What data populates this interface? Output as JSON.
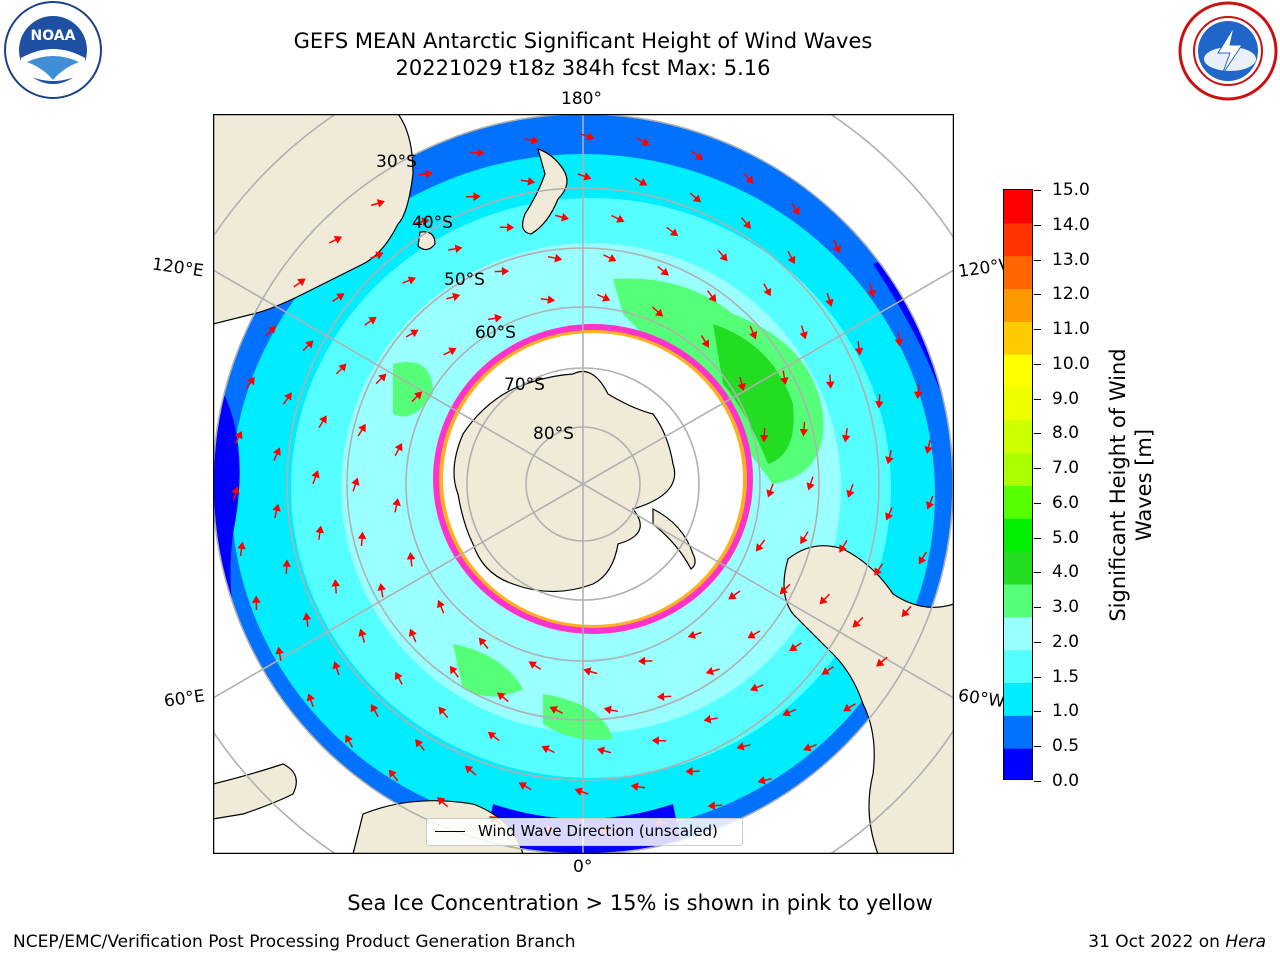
{
  "title": {
    "line1": "GEFS MEAN Antarctic Significant Height of Wind Waves",
    "line2": "20221029 t18z 384h fcst   Max: 5.16"
  },
  "map": {
    "projection": "south-polar-stereographic",
    "longitude_labels": {
      "top": "180°",
      "upper_left": "120°E",
      "upper_right": "120°W",
      "lower_left": "60°E",
      "lower_right": "60°W",
      "bottom": "0°"
    },
    "latitude_labels": [
      "30°S",
      "40°S",
      "50°S",
      "60°S",
      "70°S",
      "80°S"
    ],
    "legend_label": "Wind Wave Direction (unscaled)",
    "colors": {
      "land": "#efebd8",
      "ice_edge_pink": "#ff33cc",
      "ice_edge_yellow": "#ffb020",
      "arrow": "#ff0000"
    }
  },
  "colorbar": {
    "label": "Significant Height of Wind Waves [m]",
    "ticks": [
      "15.0",
      "14.0",
      "13.0",
      "12.0",
      "11.0",
      "10.0",
      "9.0",
      "8.0",
      "7.0",
      "6.0",
      "5.0",
      "4.0",
      "3.0",
      "2.0",
      "1.5",
      "1.0",
      "0.5",
      "0.0"
    ],
    "colors_bottom_to_top": [
      "#0000ff",
      "#0072ff",
      "#00ecff",
      "#55ffff",
      "#99ffff",
      "#55ff77",
      "#22dd22",
      "#00ee00",
      "#55ff00",
      "#aaff00",
      "#ccff00",
      "#eeff00",
      "#ffff00",
      "#ffcc00",
      "#ff9900",
      "#ff6600",
      "#ff3300",
      "#ff0000"
    ]
  },
  "footnote": "Sea Ice Concentration > 15% is shown in pink to yellow",
  "footer": {
    "left": "NCEP/EMC/Verification Post Processing Product Generation Branch",
    "right_date": "31 Oct 2022 on ",
    "right_host": "Hera"
  },
  "logos": {
    "left": "NOAA",
    "left_ring_text": "NATIONAL OCEANIC AND ATMOSPHERIC ADMINISTRATION",
    "left_ring_bottom": "U.S. DEPARTMENT OF COMMERCE",
    "right_ring_text": "NATIONAL WEATHER SERVICE"
  }
}
